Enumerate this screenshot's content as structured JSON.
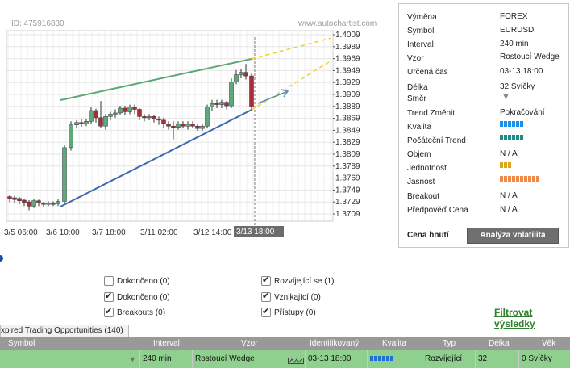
{
  "chart": {
    "id_label": "ID: 475916830",
    "watermark": "www.autochartist.com",
    "price_labels": [
      "1.4009",
      "1.3989",
      "1.3969",
      "1.3949",
      "1.3929",
      "1.3909",
      "1.3889",
      "1.3869",
      "1.3849",
      "1.3829",
      "1.3809",
      "1.3789",
      "1.3769",
      "1.3749",
      "1.3729",
      "1.3709"
    ],
    "date_labels": [
      "3/5 06:00",
      "3/6 10:00",
      "3/7 18:00",
      "3/11 02:00",
      "3/12 14:00"
    ],
    "current_time_label": "3/13 18:00",
    "colors": {
      "bull": "#5ea97b",
      "bear": "#a82e3c",
      "resistance": "#5aa876",
      "support": "#3e68b0",
      "projection": "#f2cf1a",
      "arrow": "#5b8fb8"
    }
  },
  "info": {
    "rows": [
      {
        "key": "Výměna",
        "value": "FOREX"
      },
      {
        "key": "Symbol",
        "value": "EURUSD"
      },
      {
        "key": "Interval",
        "value": "240 min"
      },
      {
        "key": "Vzor",
        "value": "Rostoucí Wedge"
      },
      {
        "key": "Určená čas",
        "value": "03-13 18:00"
      },
      {
        "key": "Délka",
        "value": "32 Svíčky"
      },
      {
        "key": "Směr",
        "value": ""
      },
      {
        "key": "Trend Změnit",
        "value": "Pokračování"
      },
      {
        "key": "Kvalita",
        "value": ""
      },
      {
        "key": "Počáteční Trend",
        "value": ""
      },
      {
        "key": "Objem",
        "value": "N / A"
      },
      {
        "key": "Jednotnost",
        "value": ""
      },
      {
        "key": "Jasnost",
        "value": ""
      },
      {
        "key": "Breakout",
        "value": "N / A"
      },
      {
        "key": "Předpověď Cena",
        "value": "N / A"
      }
    ],
    "cena_label": "Cena hnutí",
    "volatility_button": "Analýza volatilita"
  },
  "filters": {
    "left": [
      {
        "label": "Dokončeno (0)",
        "checked": false
      },
      {
        "label": "Dokončeno (0)",
        "checked": true
      },
      {
        "label": "Breakouts (0)",
        "checked": true
      }
    ],
    "right": [
      {
        "label": "Rozvíjející se (1)",
        "checked": true
      },
      {
        "label": "Vznikající (0)",
        "checked": true
      },
      {
        "label": "Přístupy (0)",
        "checked": true
      }
    ],
    "filter_link": "Filtrovat výsledky"
  },
  "table": {
    "tab_label": "xpired Trading Opportunities (140)",
    "headers": [
      "Symbol",
      "Interval",
      "Vzor",
      "Identifikovaný",
      "Kvalita",
      "Typ",
      "Délka",
      "Věk"
    ],
    "row": {
      "symbol": "",
      "interval": "240 min",
      "pattern": "Rostoucí Wedge",
      "identified": "03-13 18:00",
      "type": "Rozvíjející",
      "length": "32",
      "age": "0 Svíčky"
    }
  }
}
